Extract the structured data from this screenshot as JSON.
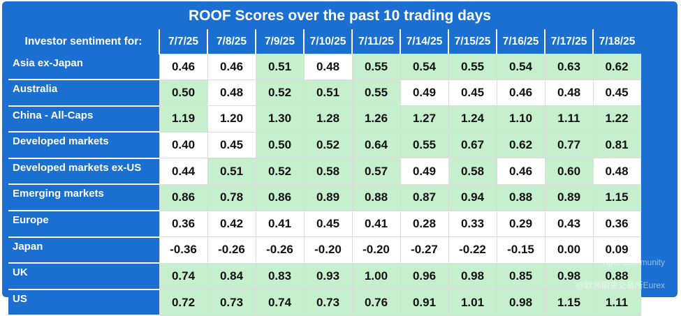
{
  "title": "ROOF Scores over the past 10 trading days",
  "header_label": "Investor sentiment for:",
  "dates": [
    "7/7/25",
    "7/8/25",
    "7/9/25",
    "7/10/25",
    "7/11/25",
    "7/14/25",
    "7/15/25",
    "7/16/25",
    "7/17/25",
    "7/18/25"
  ],
  "rows": [
    {
      "label": "Asia ex-Japan",
      "values": [
        "0.46",
        "0.46",
        "0.51",
        "0.48",
        "0.55",
        "0.54",
        "0.55",
        "0.54",
        "0.63",
        "0.62"
      ],
      "shade": [
        "w",
        "w",
        "g",
        "w",
        "g",
        "g",
        "g",
        "g",
        "g",
        "g"
      ]
    },
    {
      "label": "Australia",
      "values": [
        "0.50",
        "0.48",
        "0.52",
        "0.51",
        "0.55",
        "0.49",
        "0.45",
        "0.46",
        "0.48",
        "0.45"
      ],
      "shade": [
        "g",
        "w",
        "g",
        "g",
        "g",
        "w",
        "w",
        "w",
        "w",
        "w"
      ]
    },
    {
      "label": "China - All-Caps",
      "values": [
        "1.19",
        "1.20",
        "1.30",
        "1.28",
        "1.26",
        "1.27",
        "1.24",
        "1.10",
        "1.11",
        "1.22"
      ],
      "shade": [
        "g",
        "w",
        "g",
        "g",
        "g",
        "g",
        "g",
        "g",
        "g",
        "g"
      ]
    },
    {
      "label": "Developed markets",
      "values": [
        "0.40",
        "0.45",
        "0.50",
        "0.52",
        "0.64",
        "0.55",
        "0.67",
        "0.62",
        "0.77",
        "0.81"
      ],
      "shade": [
        "w",
        "w",
        "g",
        "g",
        "g",
        "g",
        "g",
        "g",
        "g",
        "g"
      ]
    },
    {
      "label": "Developed markets ex-US",
      "values": [
        "0.44",
        "0.51",
        "0.52",
        "0.58",
        "0.57",
        "0.49",
        "0.58",
        "0.46",
        "0.60",
        "0.48"
      ],
      "shade": [
        "w",
        "g",
        "g",
        "g",
        "g",
        "w",
        "g",
        "w",
        "g",
        "w"
      ]
    },
    {
      "label": "Emerging markets",
      "values": [
        "0.86",
        "0.78",
        "0.86",
        "0.89",
        "0.88",
        "0.87",
        "0.94",
        "0.88",
        "0.89",
        "1.15"
      ],
      "shade": [
        "g",
        "g",
        "g",
        "g",
        "g",
        "g",
        "g",
        "g",
        "g",
        "g"
      ]
    },
    {
      "label": "Europe",
      "values": [
        "0.36",
        "0.42",
        "0.41",
        "0.45",
        "0.41",
        "0.28",
        "0.33",
        "0.29",
        "0.43",
        "0.36"
      ],
      "shade": [
        "w",
        "w",
        "w",
        "w",
        "w",
        "w",
        "w",
        "w",
        "w",
        "w"
      ]
    },
    {
      "label": "Japan",
      "values": [
        "-0.36",
        "-0.26",
        "-0.26",
        "-0.20",
        "-0.20",
        "-0.27",
        "-0.22",
        "-0.15",
        "0.00",
        "0.09"
      ],
      "shade": [
        "w",
        "w",
        "w",
        "w",
        "w",
        "w",
        "w",
        "w",
        "w",
        "w"
      ]
    },
    {
      "label": "UK",
      "values": [
        "0.74",
        "0.84",
        "0.83",
        "0.93",
        "1.00",
        "0.96",
        "0.98",
        "0.85",
        "0.98",
        "0.88"
      ],
      "shade": [
        "g",
        "g",
        "g",
        "g",
        "g",
        "g",
        "g",
        "g",
        "g",
        "g"
      ]
    },
    {
      "label": "US",
      "values": [
        "0.72",
        "0.73",
        "0.74",
        "0.73",
        "0.76",
        "0.91",
        "1.01",
        "0.98",
        "1.15",
        "1.11"
      ],
      "shade": [
        "g",
        "g",
        "g",
        "g",
        "g",
        "g",
        "g",
        "g",
        "g",
        "g"
      ]
    }
  ],
  "watermark": {
    "line1": "Tiger Community",
    "line2": "@欧洲期货交易所Eurex"
  },
  "colors": {
    "frame_blue": "#1a6fd0",
    "positive_green": "#c6efce",
    "neutral_white": "#ffffff"
  }
}
